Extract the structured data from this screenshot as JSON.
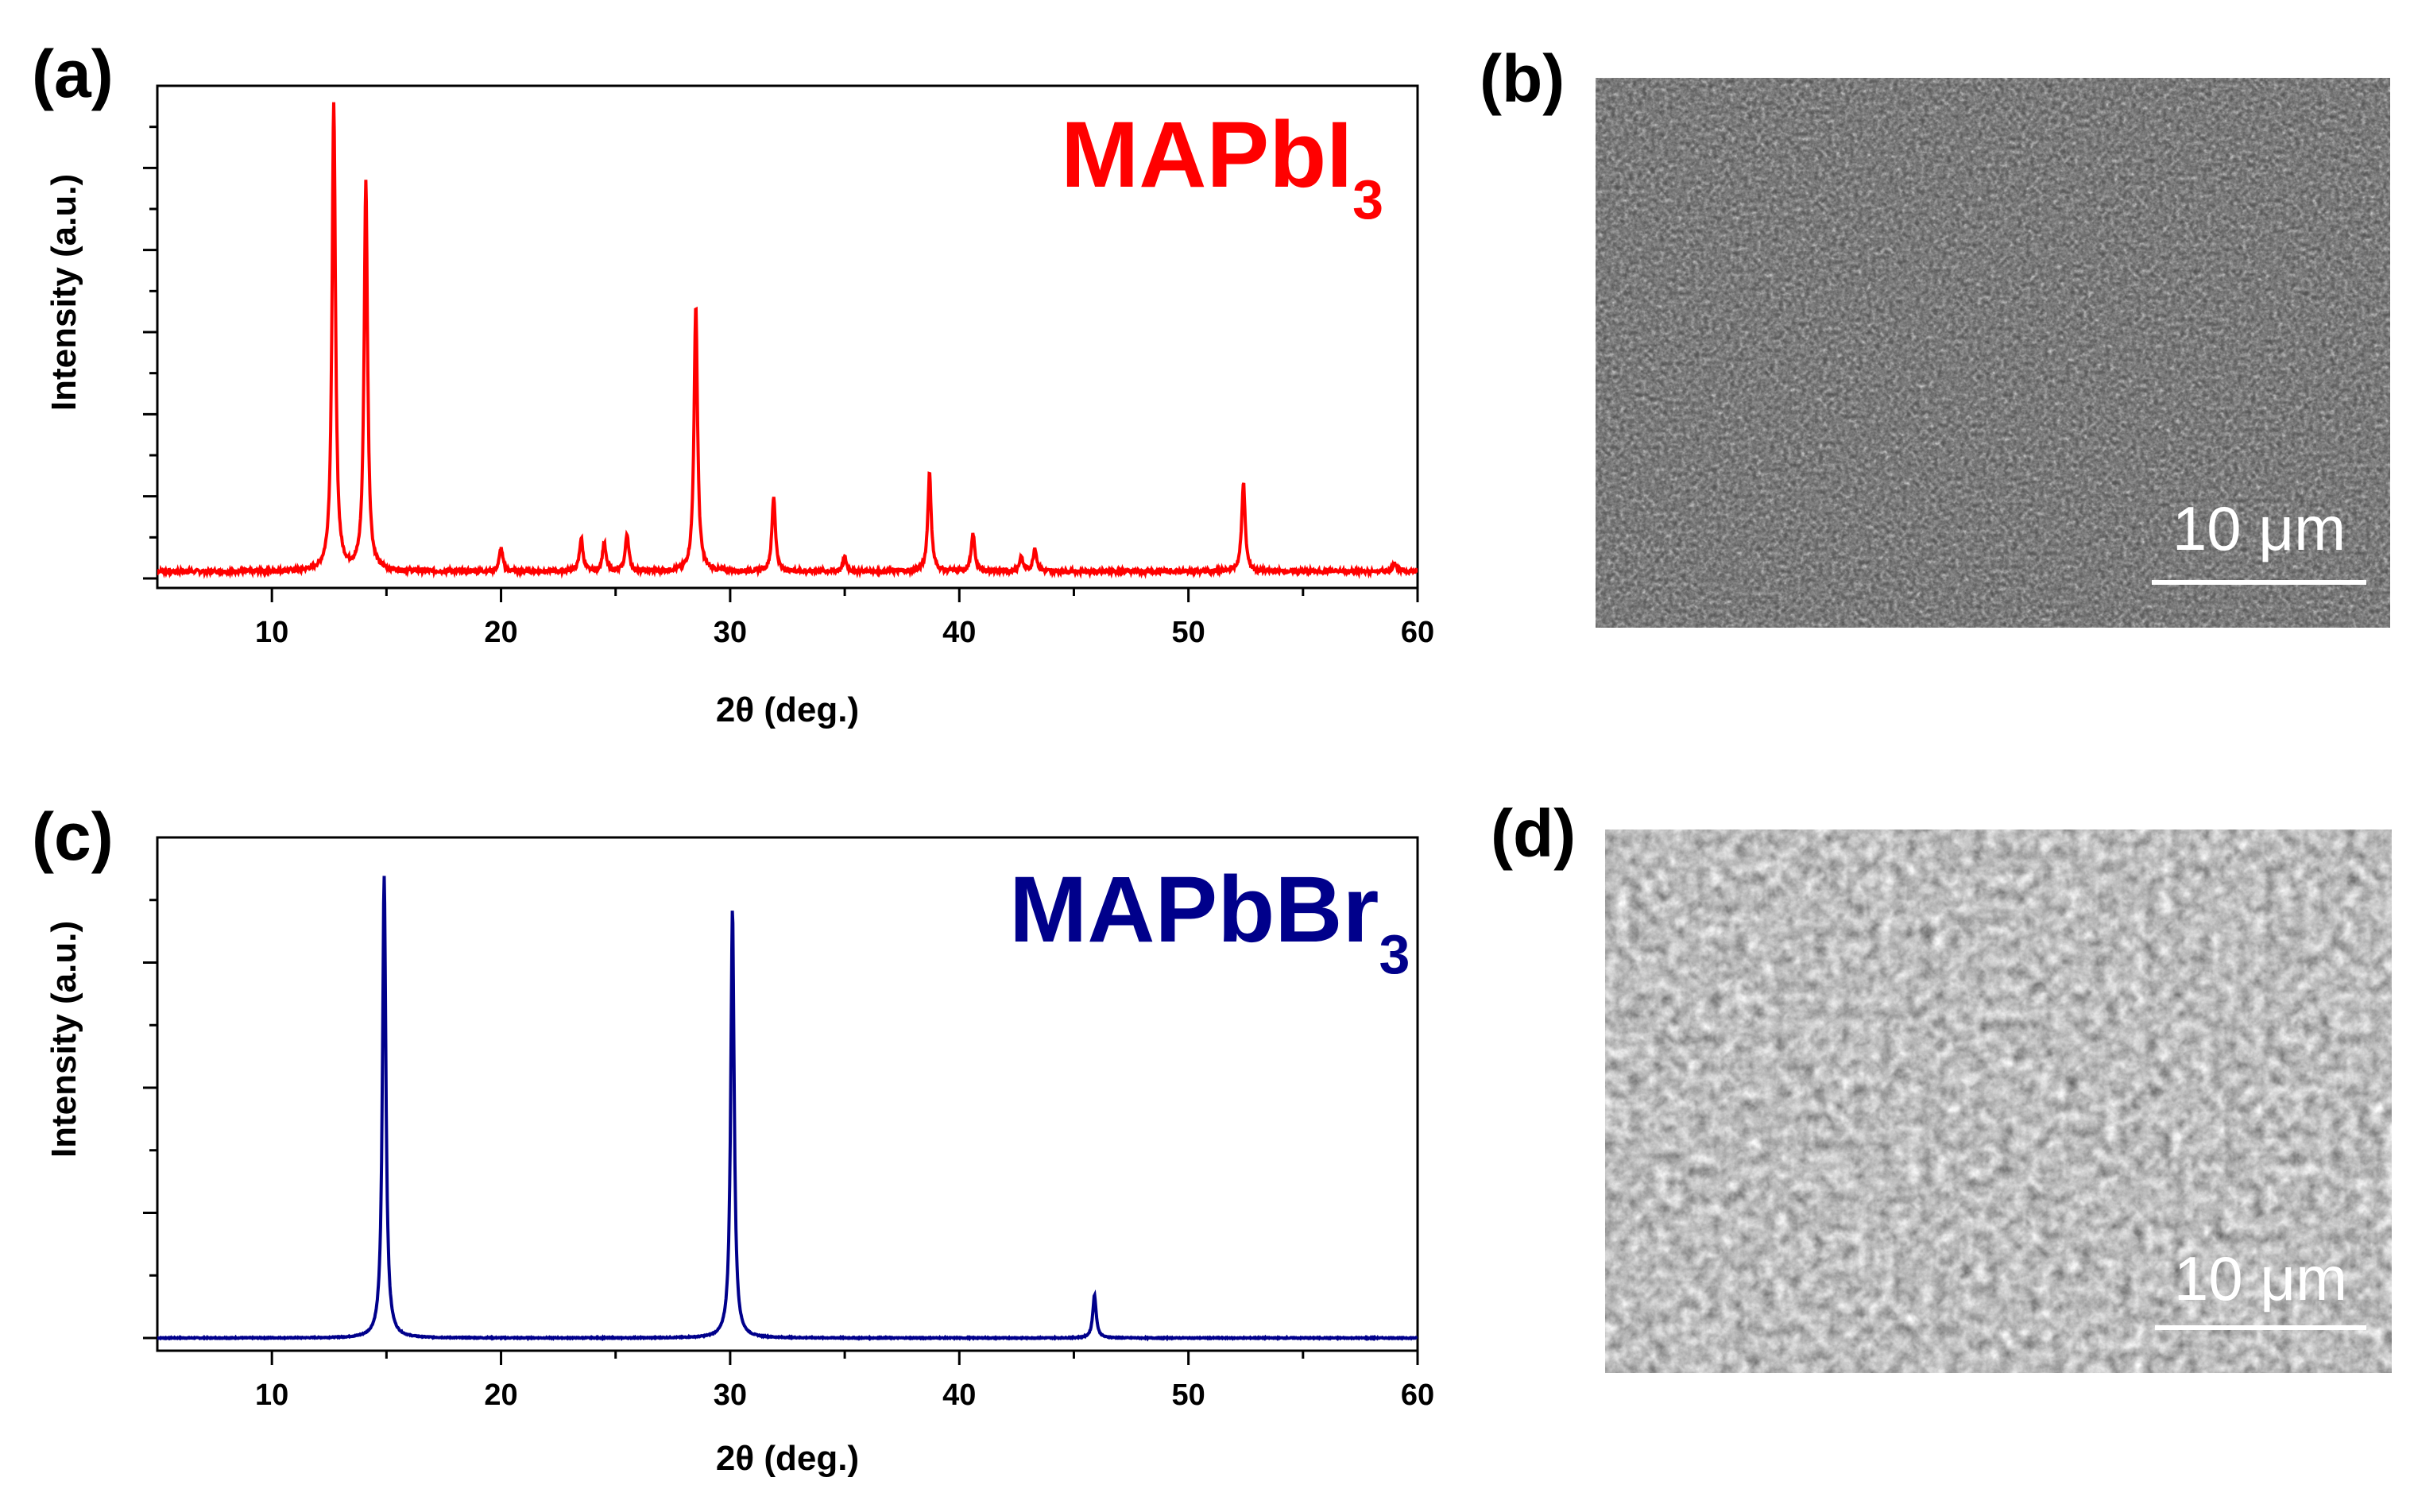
{
  "figure": {
    "panels": [
      {
        "id": "a",
        "label": "(a)"
      },
      {
        "id": "b",
        "label": "(b)"
      },
      {
        "id": "c",
        "label": "(c)"
      },
      {
        "id": "d",
        "label": "(d)"
      }
    ],
    "sem_b": {
      "scale_bar_text": "10 μm",
      "image_kind": "SEM micrograph",
      "tone": "dark fine-grained"
    },
    "sem_d": {
      "scale_bar_text": "10 μm",
      "image_kind": "SEM micrograph",
      "tone": "grey coarse-grained"
    }
  },
  "chart_data": [
    {
      "type": "line",
      "panel": "a",
      "title": "",
      "sample_name": "MAPbI",
      "sample_subscript": "3",
      "color": "#ff0000",
      "xlabel": "2θ (deg.)",
      "ylabel": "Intensity (a.u.)",
      "xlim": [
        5,
        60
      ],
      "ylim": [
        0,
        1.05
      ],
      "xticks": [
        10,
        20,
        30,
        40,
        50,
        60
      ],
      "baseline": 0.015,
      "peaks": [
        {
          "x": 12.7,
          "y": 1.0
        },
        {
          "x": 14.1,
          "y": 0.83
        },
        {
          "x": 20.0,
          "y": 0.05
        },
        {
          "x": 23.5,
          "y": 0.07
        },
        {
          "x": 24.5,
          "y": 0.06
        },
        {
          "x": 25.5,
          "y": 0.08
        },
        {
          "x": 28.5,
          "y": 0.57
        },
        {
          "x": 31.9,
          "y": 0.16
        },
        {
          "x": 35.0,
          "y": 0.03
        },
        {
          "x": 38.7,
          "y": 0.21
        },
        {
          "x": 40.6,
          "y": 0.08
        },
        {
          "x": 42.7,
          "y": 0.03
        },
        {
          "x": 43.3,
          "y": 0.05
        },
        {
          "x": 52.4,
          "y": 0.19
        },
        {
          "x": 59.0,
          "y": 0.02
        }
      ]
    },
    {
      "type": "line",
      "panel": "c",
      "title": "",
      "sample_name": "MAPbBr",
      "sample_subscript": "3",
      "color": "#00008b",
      "xlabel": "2θ (deg.)",
      "ylabel": "Intensity (a.u.)",
      "xlim": [
        5,
        60
      ],
      "ylim": [
        0,
        1.05
      ],
      "xticks": [
        10,
        20,
        30,
        40,
        50,
        60
      ],
      "baseline": 0.0,
      "peaks": [
        {
          "x": 14.9,
          "y": 0.97
        },
        {
          "x": 30.1,
          "y": 0.9
        },
        {
          "x": 45.9,
          "y": 0.09
        }
      ]
    }
  ]
}
